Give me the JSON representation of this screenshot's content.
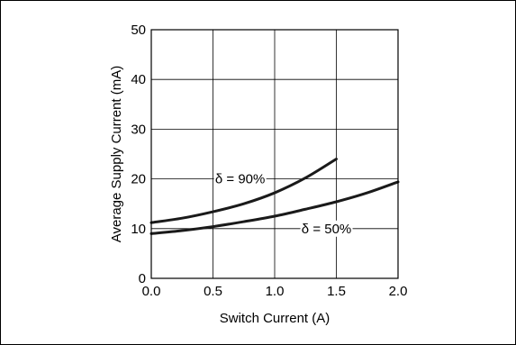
{
  "chart_data": {
    "type": "line",
    "title": "",
    "xlabel": "Switch Current (A)",
    "ylabel": "Average Supply Current (mA)",
    "xlim": [
      0,
      2
    ],
    "ylim": [
      0,
      50
    ],
    "x_ticks": [
      "0.0",
      "0.5",
      "1.0",
      "1.5",
      "2.0"
    ],
    "y_ticks": [
      "0",
      "10",
      "20",
      "30",
      "40",
      "50"
    ],
    "grid": true,
    "legend": "none",
    "series": [
      {
        "name": "δ = 90%",
        "x": [
          0,
          0.25,
          0.5,
          0.75,
          1.0,
          1.25,
          1.5
        ],
        "y": [
          11.2,
          12.1,
          13.4,
          15.0,
          17.2,
          20.2,
          24.0
        ]
      },
      {
        "name": "δ = 50%",
        "x": [
          0,
          0.25,
          0.5,
          0.75,
          1.0,
          1.25,
          1.5,
          1.75,
          2.0
        ],
        "y": [
          9.0,
          9.6,
          10.4,
          11.4,
          12.5,
          13.9,
          15.4,
          17.2,
          19.4
        ]
      }
    ],
    "colors": {
      "line": "#1a1a1a",
      "grid": "#000000",
      "background": "#ffffff"
    }
  }
}
